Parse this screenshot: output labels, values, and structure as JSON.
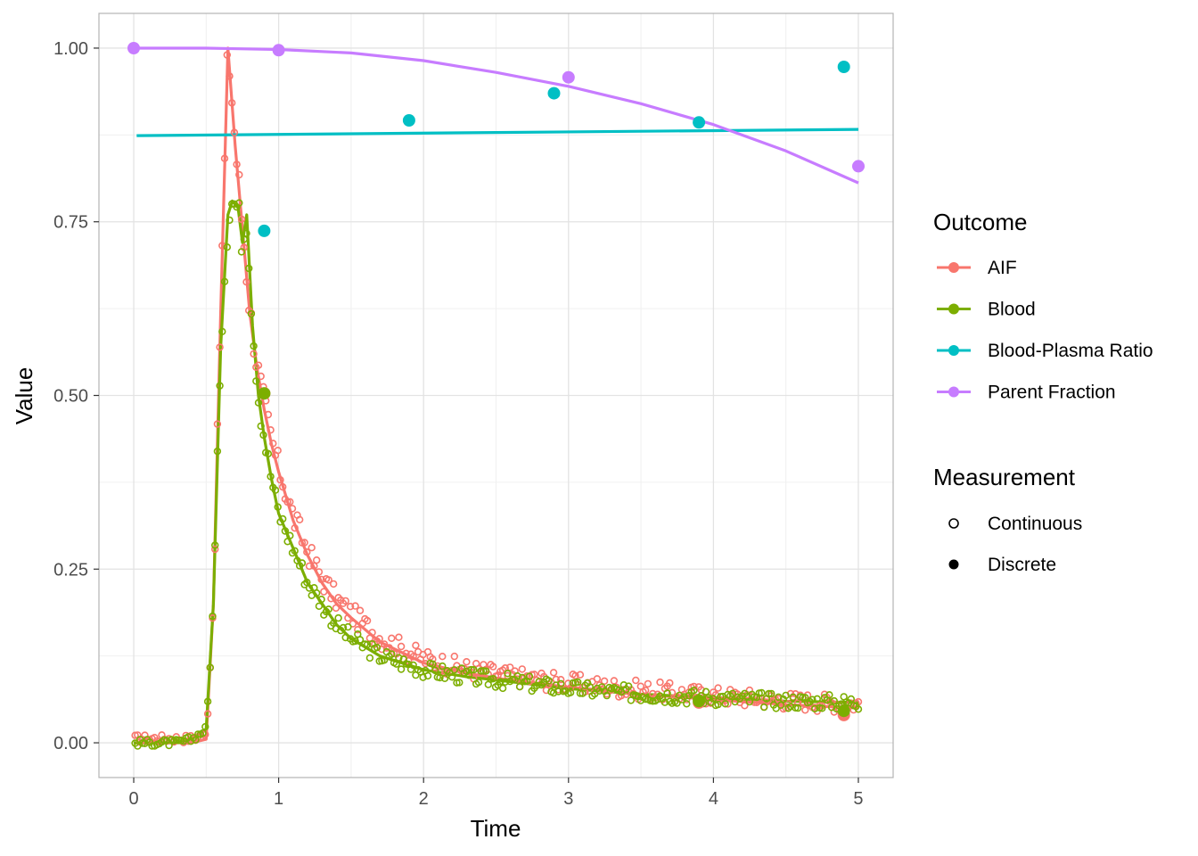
{
  "chart_data": {
    "type": "line",
    "xlabel": "Time",
    "ylabel": "Value",
    "xlim": [
      -0.24,
      5.24
    ],
    "ylim": [
      -0.05,
      1.05
    ],
    "x_ticks": [
      0,
      1,
      2,
      3,
      4,
      5
    ],
    "x_tick_labels": [
      "0",
      "1",
      "2",
      "3",
      "4",
      "5"
    ],
    "y_ticks": [
      0,
      0.25,
      0.5,
      0.75,
      1.0
    ],
    "y_tick_labels": [
      "0.00",
      "0.25",
      "0.50",
      "0.75",
      "1.00"
    ],
    "grid": true,
    "legends": [
      {
        "title": "Outcome",
        "entries": [
          {
            "label": "AIF",
            "color": "#F8766D"
          },
          {
            "label": "Blood",
            "color": "#7CAE00"
          },
          {
            "label": "Blood-Plasma Ratio",
            "color": "#00BFC4"
          },
          {
            "label": "Parent Fraction",
            "color": "#C77CFF"
          }
        ]
      },
      {
        "title": "Measurement",
        "entries": [
          {
            "label": "Continuous",
            "shape": "open-circle"
          },
          {
            "label": "Discrete",
            "shape": "filled-circle"
          }
        ]
      }
    ],
    "series": [
      {
        "name": "AIF",
        "kind": "curve",
        "color": "#F8766D",
        "x": [
          0.0,
          0.1,
          0.2,
          0.3,
          0.4,
          0.5,
          0.55,
          0.6,
          0.65,
          0.7,
          0.75,
          0.8,
          0.85,
          0.9,
          0.95,
          1.0,
          1.1,
          1.2,
          1.3,
          1.4,
          1.5,
          1.7,
          2.0,
          2.3,
          2.6,
          3.0,
          3.5,
          4.0,
          4.5,
          5.0
        ],
        "y": [
          0.0,
          0.0,
          0.0,
          0.0,
          0.0,
          0.005,
          0.2,
          0.62,
          1.0,
          0.86,
          0.74,
          0.62,
          0.54,
          0.48,
          0.43,
          0.39,
          0.32,
          0.27,
          0.23,
          0.2,
          0.18,
          0.145,
          0.115,
          0.1,
          0.09,
          0.08,
          0.07,
          0.062,
          0.055,
          0.05
        ]
      },
      {
        "name": "Blood",
        "kind": "curve",
        "color": "#7CAE00",
        "x": [
          0.0,
          0.1,
          0.2,
          0.3,
          0.4,
          0.5,
          0.55,
          0.6,
          0.65,
          0.68,
          0.72,
          0.75,
          0.78,
          0.82,
          0.86,
          0.9,
          0.95,
          1.0,
          1.1,
          1.2,
          1.3,
          1.4,
          1.5,
          1.7,
          2.0,
          2.3,
          2.6,
          3.0,
          3.5,
          4.0,
          4.5,
          5.0
        ],
        "y": [
          0.0,
          0.0,
          0.0,
          0.0,
          0.005,
          0.02,
          0.2,
          0.57,
          0.76,
          0.78,
          0.77,
          0.72,
          0.76,
          0.6,
          0.5,
          0.44,
          0.38,
          0.33,
          0.28,
          0.23,
          0.2,
          0.17,
          0.15,
          0.125,
          0.105,
          0.095,
          0.088,
          0.078,
          0.07,
          0.065,
          0.06,
          0.058
        ]
      },
      {
        "name": "Blood-Plasma Ratio",
        "kind": "curve",
        "color": "#00BFC4",
        "x": [
          0.02,
          5.0
        ],
        "y": [
          0.874,
          0.883
        ]
      },
      {
        "name": "Parent Fraction",
        "kind": "curve",
        "color": "#C77CFF",
        "x": [
          0.0,
          0.5,
          1.0,
          1.5,
          2.0,
          2.5,
          3.0,
          3.5,
          4.0,
          4.5,
          5.0
        ],
        "y": [
          1.0,
          1.0,
          0.998,
          0.993,
          0.982,
          0.965,
          0.945,
          0.92,
          0.89,
          0.852,
          0.806
        ]
      },
      {
        "name": "Blood-Plasma Ratio",
        "kind": "discrete-points",
        "color": "#00BFC4",
        "x": [
          0.9,
          1.9,
          2.9,
          3.9,
          4.9
        ],
        "y": [
          0.737,
          0.896,
          0.935,
          0.893,
          0.973
        ]
      },
      {
        "name": "Parent Fraction",
        "kind": "discrete-points",
        "color": "#C77CFF",
        "x": [
          0.0,
          1.0,
          3.0,
          5.0
        ],
        "y": [
          1.0,
          0.997,
          0.958,
          0.83
        ]
      },
      {
        "name": "AIF",
        "kind": "discrete-points",
        "color": "#F8766D",
        "x": [
          0.9,
          3.9,
          4.9
        ],
        "y": [
          0.503,
          0.058,
          0.04
        ]
      },
      {
        "name": "Blood",
        "kind": "discrete-points",
        "color": "#7CAE00",
        "x": [
          0.9,
          3.9,
          4.9
        ],
        "y": [
          0.503,
          0.06,
          0.046
        ]
      }
    ],
    "continuous_scatter": [
      {
        "name": "AIF",
        "color": "#F8766D",
        "offset": 0.006,
        "noise": 0.012,
        "n": 300
      },
      {
        "name": "Blood",
        "color": "#7CAE00",
        "offset": 0.0,
        "noise": 0.01,
        "n": 300
      }
    ]
  }
}
